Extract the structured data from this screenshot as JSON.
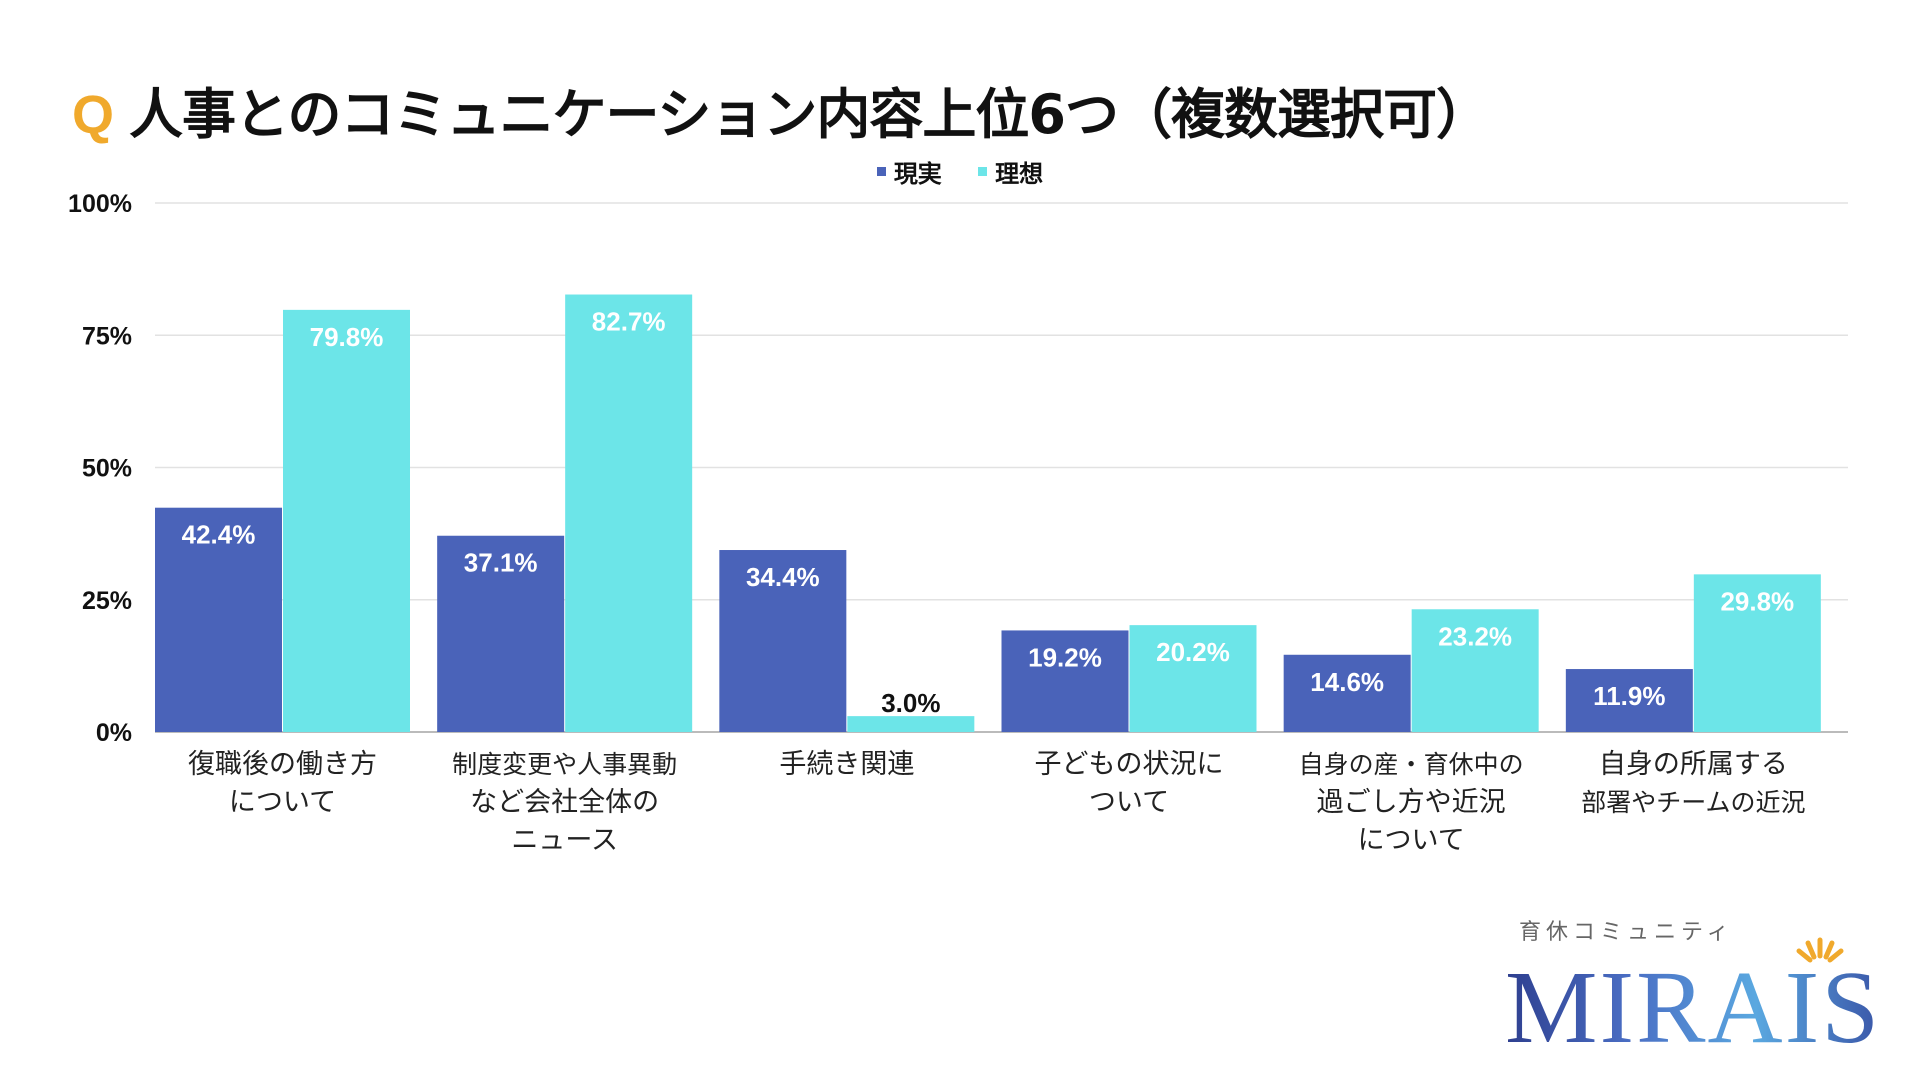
{
  "title_prefix": "Q",
  "title": "人事とのコミュニケーション内容上位6つ（複数選択可）",
  "logo": {
    "sub": "育休コミュニティ",
    "main": "MIRAIS"
  },
  "chart_data": {
    "type": "bar",
    "title": "人事とのコミュニケーション内容上位6つ（複数選択可）",
    "categories": [
      [
        "復職後の働き方",
        "について"
      ],
      [
        "制度変更や人事異動",
        "など会社全体の",
        "ニュース"
      ],
      [
        "手続き関連"
      ],
      [
        "子どもの状況に",
        "ついて"
      ],
      [
        "自身の産・育休中の",
        "過ごし方や近況",
        "について"
      ],
      [
        "自身の所属する",
        "部署やチームの近況"
      ]
    ],
    "series": [
      {
        "name": "現実",
        "color": "#4a63b9",
        "values": [
          42.4,
          37.1,
          34.4,
          19.2,
          14.6,
          11.9
        ],
        "labels": [
          "42.4%",
          "37.1%",
          "34.4%",
          "19.2%",
          "14.6%",
          "11.9%"
        ]
      },
      {
        "name": "理想",
        "color": "#6ce5e8",
        "values": [
          79.8,
          82.7,
          3.0,
          20.2,
          23.2,
          29.8
        ],
        "labels": [
          "79.8%",
          "82.7%",
          "3.0%",
          "20.2%",
          "23.2%",
          "29.8%"
        ]
      }
    ],
    "yticks": [
      "0%",
      "25%",
      "50%",
      "75%",
      "100%"
    ],
    "ylim": [
      0,
      100
    ],
    "grid": true,
    "legend": "top-center"
  }
}
